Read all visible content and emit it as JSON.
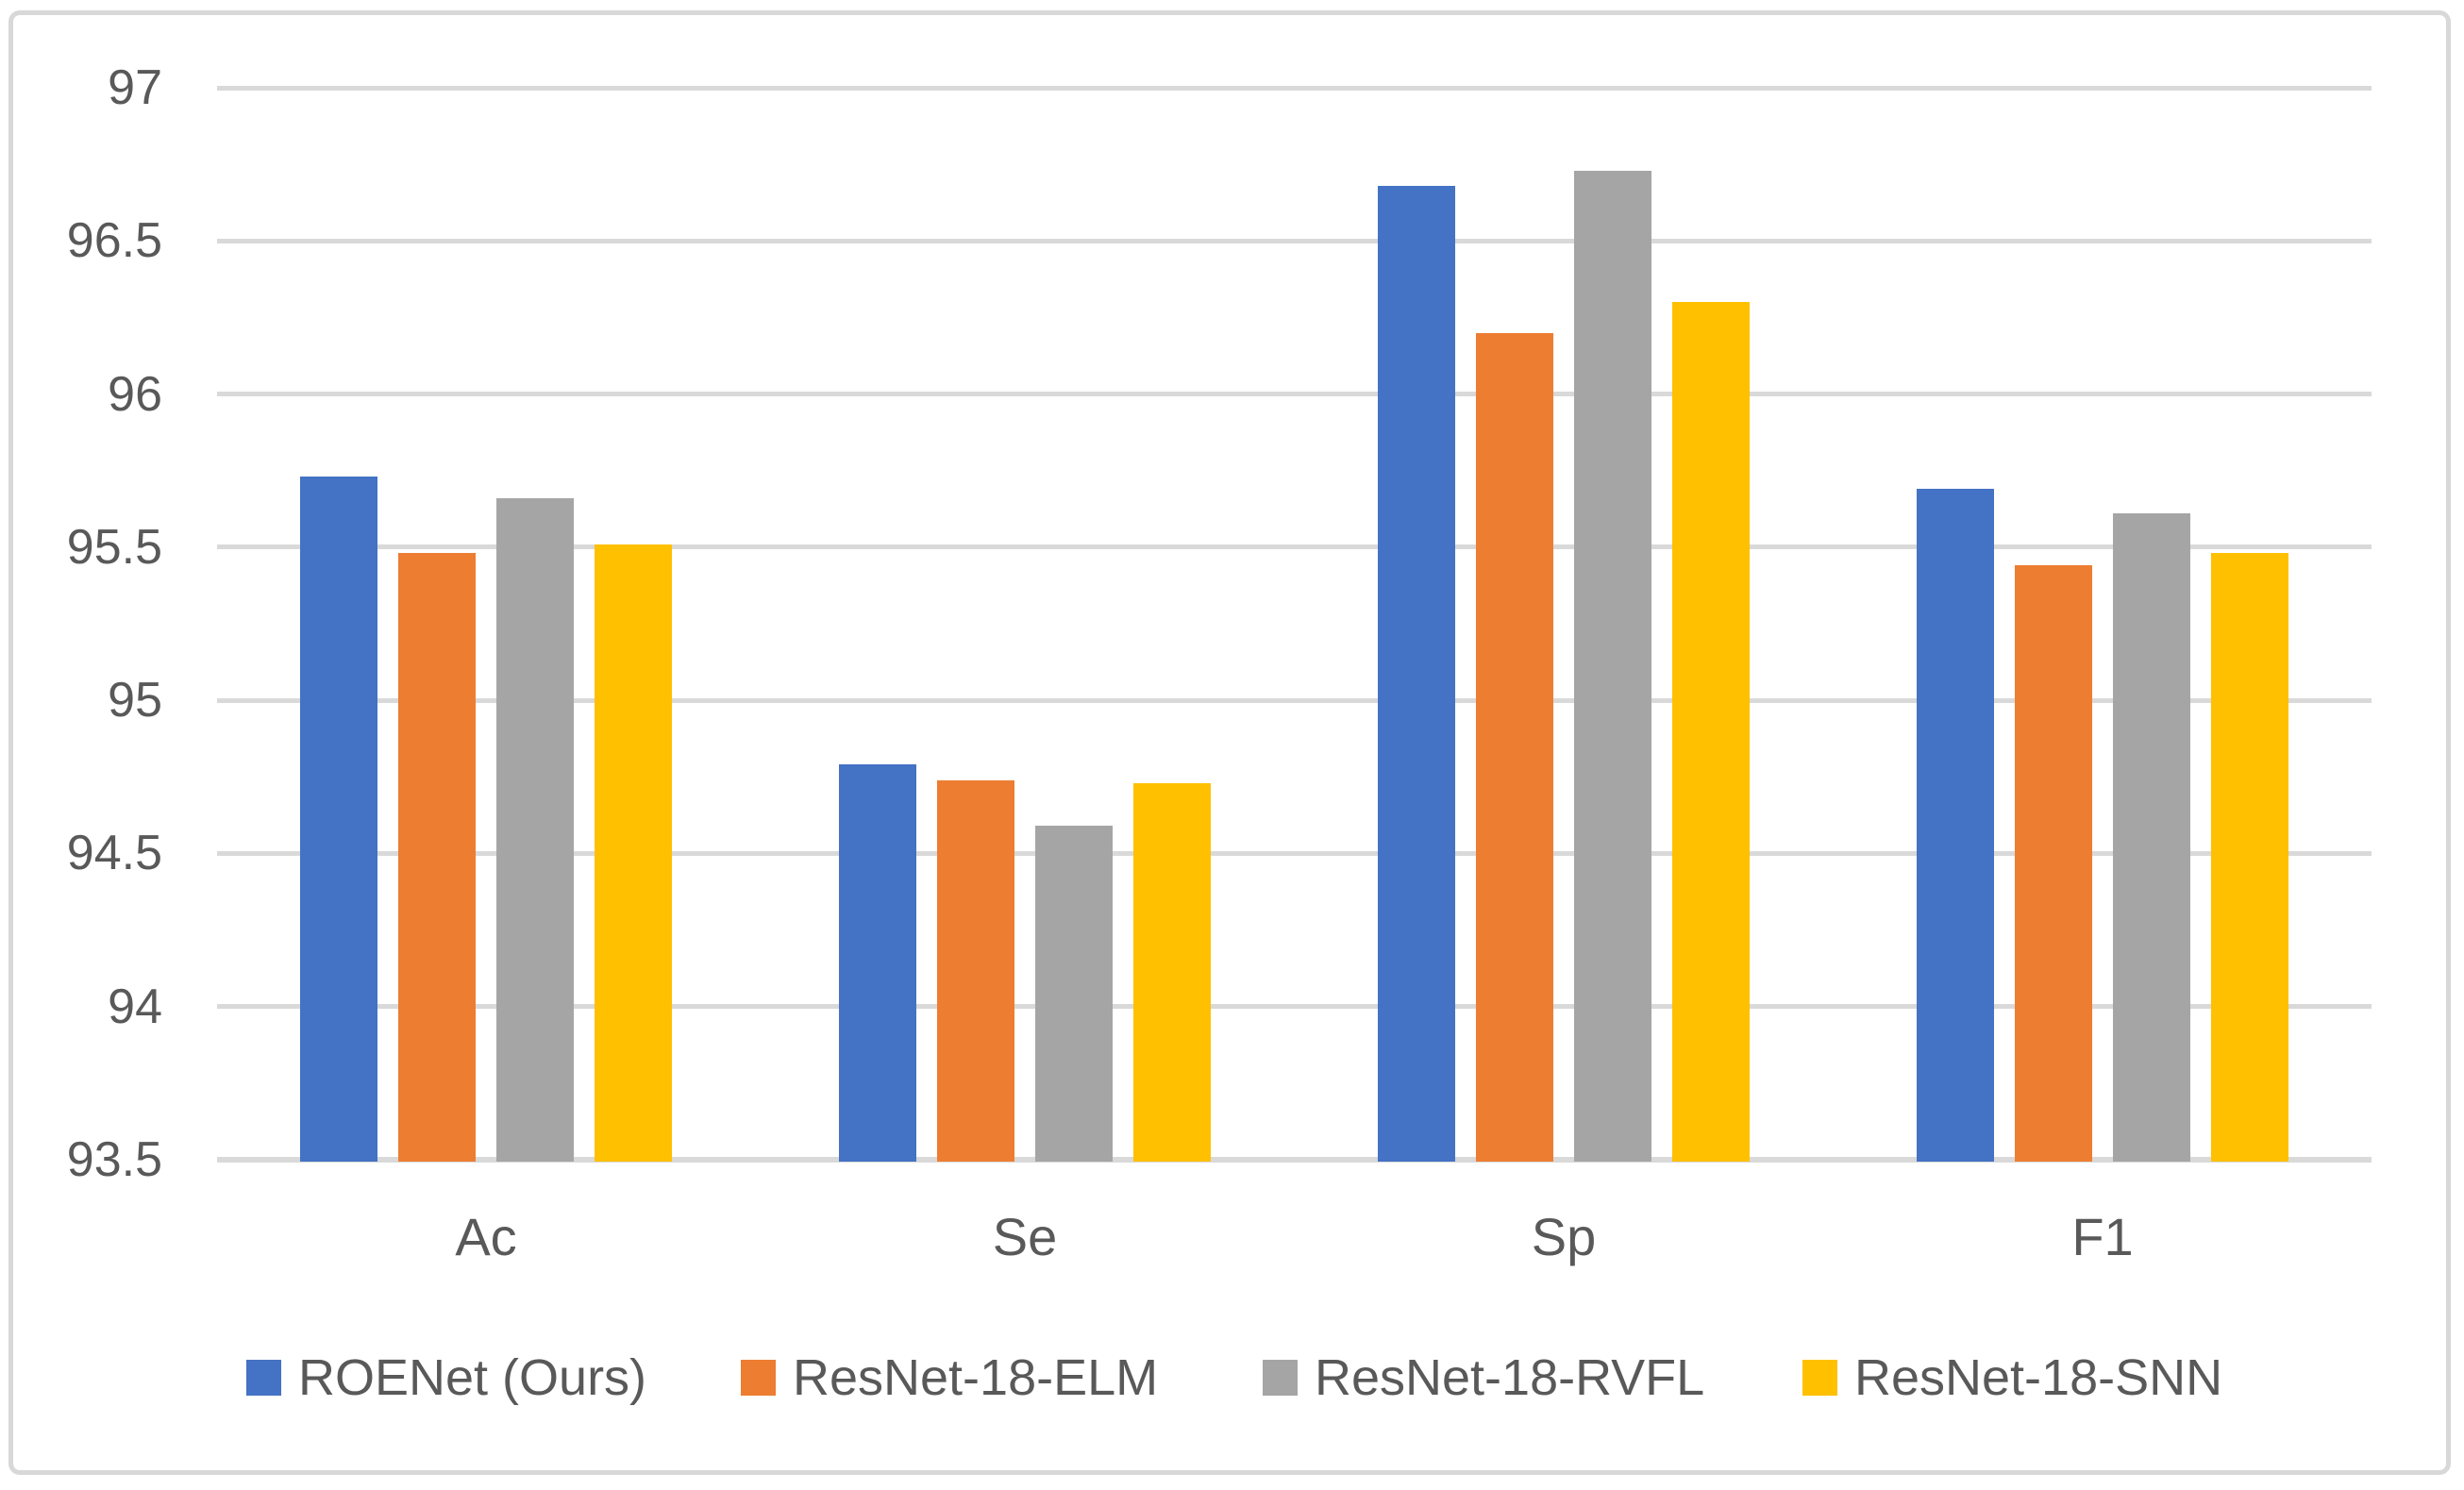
{
  "figure": {
    "background_color": "#ffffff",
    "frame_border_color": "#d8d8d8"
  },
  "chart_data": {
    "type": "bar",
    "title": "",
    "xlabel": "",
    "ylabel": "",
    "categories": [
      "Ac",
      "Se",
      "Sp",
      "F1"
    ],
    "series": [
      {
        "name": "ROENet (Ours)",
        "color": "#4472C4",
        "values": [
          95.73,
          94.79,
          96.68,
          95.69
        ]
      },
      {
        "name": "ResNet-18-ELM",
        "color": "#ED7D31",
        "values": [
          95.48,
          94.74,
          96.2,
          95.44
        ]
      },
      {
        "name": "ResNet-18-RVFL",
        "color": "#A5A5A5",
        "values": [
          95.66,
          94.59,
          96.73,
          95.61
        ]
      },
      {
        "name": "ResNet-18-SNN",
        "color": "#FFC000",
        "values": [
          95.51,
          94.73,
          96.3,
          95.48
        ]
      }
    ],
    "ylim": [
      93.5,
      97
    ],
    "ytick_step": 0.5,
    "ytick_labels": [
      "93.5",
      "94",
      "94.5",
      "95",
      "95.5",
      "96",
      "96.5",
      "97"
    ],
    "grid": true,
    "gridline_color": "#d9d9d9",
    "axis_line_color": "#d9d9d9",
    "tick_label_color": "#595959",
    "category_label_color": "#595959",
    "legend_text_color": "#595959",
    "legend_position": "bottom"
  }
}
